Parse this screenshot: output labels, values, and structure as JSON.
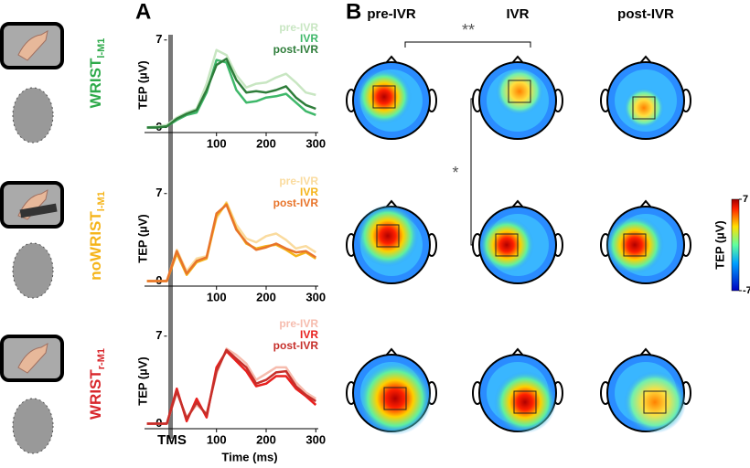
{
  "panel_a_label": "A",
  "panel_b_label": "B",
  "conditions": [
    {
      "name": "WRIST",
      "subscript": "l-M1",
      "color": "#2eaa4a"
    },
    {
      "name": "noWRIST",
      "subscript": "l-M1",
      "color": "#f5b41a"
    },
    {
      "name": "WRIST",
      "subscript": "r-M1",
      "color": "#d8262b"
    }
  ],
  "tms_label": "TMS",
  "chart_data": [
    {
      "type": "line",
      "ylabel": "TEP (µV)",
      "x": [
        -40,
        -20,
        0,
        20,
        40,
        60,
        80,
        100,
        120,
        140,
        160,
        180,
        200,
        220,
        240,
        260,
        280,
        300
      ],
      "series": [
        {
          "name": "pre-IVR",
          "color": "#c8e6c2",
          "values": [
            0,
            0.1,
            0.2,
            0.8,
            1.2,
            1.5,
            3.5,
            6.2,
            5.8,
            4.2,
            3.2,
            3.5,
            3.6,
            4,
            4.3,
            3.6,
            2.8,
            2.6
          ]
        },
        {
          "name": "IVR",
          "color": "#3fb86a",
          "values": [
            0,
            0,
            0.1,
            0.6,
            1,
            1.2,
            2.8,
            5.4,
            5.2,
            3,
            2,
            2.1,
            2.4,
            2.5,
            2.7,
            2,
            1.3,
            1
          ]
        },
        {
          "name": "post-IVR",
          "color": "#2e7d3a",
          "values": [
            0,
            0,
            0.1,
            0.7,
            1.1,
            1.4,
            3,
            5,
            5.5,
            3.8,
            2.8,
            2.9,
            2.8,
            3,
            3.3,
            2.4,
            1.8,
            1.5
          ]
        }
      ],
      "xlim": [
        -45,
        305
      ],
      "ylim": [
        -0.4,
        7.2
      ],
      "xticks": [
        100,
        200,
        300
      ],
      "yticks": [
        0,
        7
      ]
    },
    {
      "type": "line",
      "ylabel": "TEP (µV)",
      "x": [
        -40,
        -20,
        0,
        20,
        40,
        60,
        80,
        100,
        120,
        140,
        160,
        180,
        200,
        220,
        240,
        260,
        280,
        300
      ],
      "series": [
        {
          "name": "pre-IVR",
          "color": "#fadb9e",
          "values": [
            0,
            0,
            0,
            2.5,
            0.8,
            1.8,
            2,
            5,
            6.3,
            4.5,
            3.4,
            3.1,
            3.6,
            3.8,
            3.3,
            2.6,
            2.8,
            2.3
          ]
        },
        {
          "name": "IVR",
          "color": "#f5b41a",
          "values": [
            0,
            0,
            0,
            2.2,
            0.5,
            1.5,
            1.8,
            5.2,
            6.2,
            4.2,
            3,
            2.6,
            2.8,
            2.9,
            2.5,
            2,
            2.3,
            1.8
          ]
        },
        {
          "name": "post-IVR",
          "color": "#e8742a",
          "values": [
            0,
            0,
            0,
            2.4,
            0.6,
            1.6,
            1.9,
            5.4,
            6.1,
            4.1,
            3.1,
            2.5,
            2.7,
            3,
            2.6,
            2.3,
            2.4,
            1.9
          ]
        }
      ],
      "xlim": [
        -45,
        305
      ],
      "ylim": [
        -0.4,
        7.2
      ],
      "xticks": [
        100,
        200,
        300
      ],
      "yticks": [
        0,
        7
      ]
    },
    {
      "type": "line",
      "ylabel": "TEP (µV)",
      "xlabel": "Time (ms)",
      "x": [
        -40,
        -20,
        0,
        20,
        40,
        60,
        80,
        100,
        120,
        140,
        160,
        180,
        200,
        220,
        240,
        260,
        280,
        300
      ],
      "series": [
        {
          "name": "pre-IVR",
          "color": "#f6bcae",
          "values": [
            0,
            0,
            0,
            2.5,
            0.5,
            1.5,
            0.8,
            4,
            6,
            5.5,
            4.8,
            3.5,
            4,
            4.5,
            4.5,
            3.3,
            2.5,
            2
          ]
        },
        {
          "name": "IVR",
          "color": "#e8201e",
          "values": [
            0,
            0,
            0,
            2.8,
            0.2,
            2,
            0.5,
            4.5,
            5.8,
            5,
            4.2,
            3,
            3.2,
            3.8,
            3.8,
            2.8,
            2.2,
            1.5
          ]
        },
        {
          "name": "post-IVR",
          "color": "#c62f2a",
          "values": [
            0,
            0,
            0,
            2.6,
            0.4,
            1.7,
            0.7,
            4.2,
            5.9,
            5.2,
            4.5,
            3.2,
            3.5,
            4.1,
            4.2,
            3,
            2.3,
            1.8
          ]
        }
      ],
      "xlim": [
        -45,
        305
      ],
      "ylim": [
        -0.4,
        7.2
      ],
      "xticks": [
        100,
        200,
        300
      ],
      "yticks": [
        0,
        7
      ]
    }
  ],
  "topoplots": {
    "columns": [
      "pre-IVR",
      "IVR",
      "post-IVR"
    ],
    "significance": [
      "**",
      "*"
    ]
  },
  "colorbar": {
    "label": "TEP (µV)",
    "lim": [
      -7,
      7
    ],
    "ticks": [
      -7,
      7
    ]
  }
}
